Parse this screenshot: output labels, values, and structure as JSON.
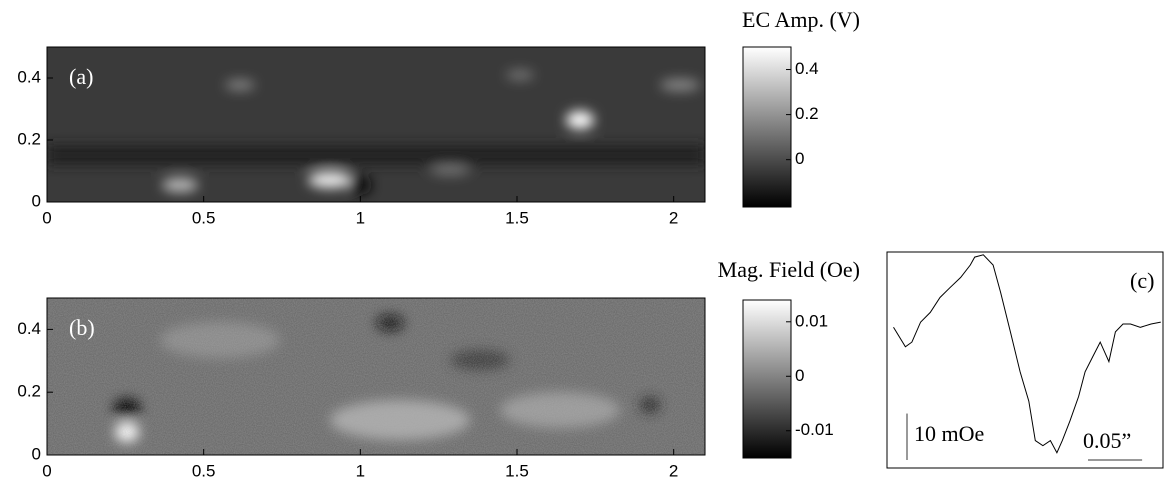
{
  "chart_data": [
    {
      "type": "heatmap",
      "label": "(a)",
      "xlim": [
        0,
        2.1
      ],
      "ylim": [
        0,
        0.5
      ],
      "xticks": [
        0,
        0.5,
        1,
        1.5,
        2
      ],
      "yticks": [
        0,
        0.2,
        0.4
      ],
      "colorbar": {
        "title": "EC Amp. (V)",
        "lim": [
          -0.21,
          0.5
        ],
        "ticks": [
          0,
          0.2,
          0.4
        ]
      }
    },
    {
      "type": "heatmap",
      "label": "(b)",
      "xlim": [
        0,
        2.1
      ],
      "ylim": [
        0,
        0.5
      ],
      "xticks": [
        0,
        0.5,
        1,
        1.5,
        2
      ],
      "yticks": [
        0,
        0.2,
        0.4
      ],
      "colorbar": {
        "title": "Mag. Field (Oe)",
        "lim": [
          -0.015,
          0.014
        ],
        "ticks": [
          -0.01,
          0,
          0.01
        ]
      }
    },
    {
      "type": "line",
      "label": "(c)",
      "color": "#000000",
      "xlim": [
        0,
        0.255
      ],
      "ylim": [
        -25,
        21.5
      ],
      "x": [
        0.006,
        0.017,
        0.023,
        0.031,
        0.04,
        0.049,
        0.058,
        0.068,
        0.077,
        0.081,
        0.089,
        0.098,
        0.105,
        0.114,
        0.123,
        0.131,
        0.137,
        0.144,
        0.151,
        0.157,
        0.162,
        0.169,
        0.177,
        0.183,
        0.19,
        0.197,
        0.205,
        0.211,
        0.218,
        0.225,
        0.234,
        0.244,
        0.253
      ],
      "values": [
        5.3,
        1.1,
        2.1,
        6.4,
        8.5,
        11.7,
        13.8,
        16.0,
        18.7,
        20.4,
        20.9,
        18.7,
        12.8,
        4.3,
        -4.3,
        -10.6,
        -19.1,
        -20.2,
        -19.1,
        -21.7,
        -19.1,
        -14.9,
        -9.6,
        -4.3,
        -1.1,
        2.1,
        -2.1,
        4.3,
        6.0,
        6.0,
        5.3,
        6.0,
        6.4
      ],
      "scale_bars": [
        {
          "label": "10 mOe",
          "value": 10
        },
        {
          "label": "0.05”",
          "value": 0.05
        }
      ]
    }
  ]
}
